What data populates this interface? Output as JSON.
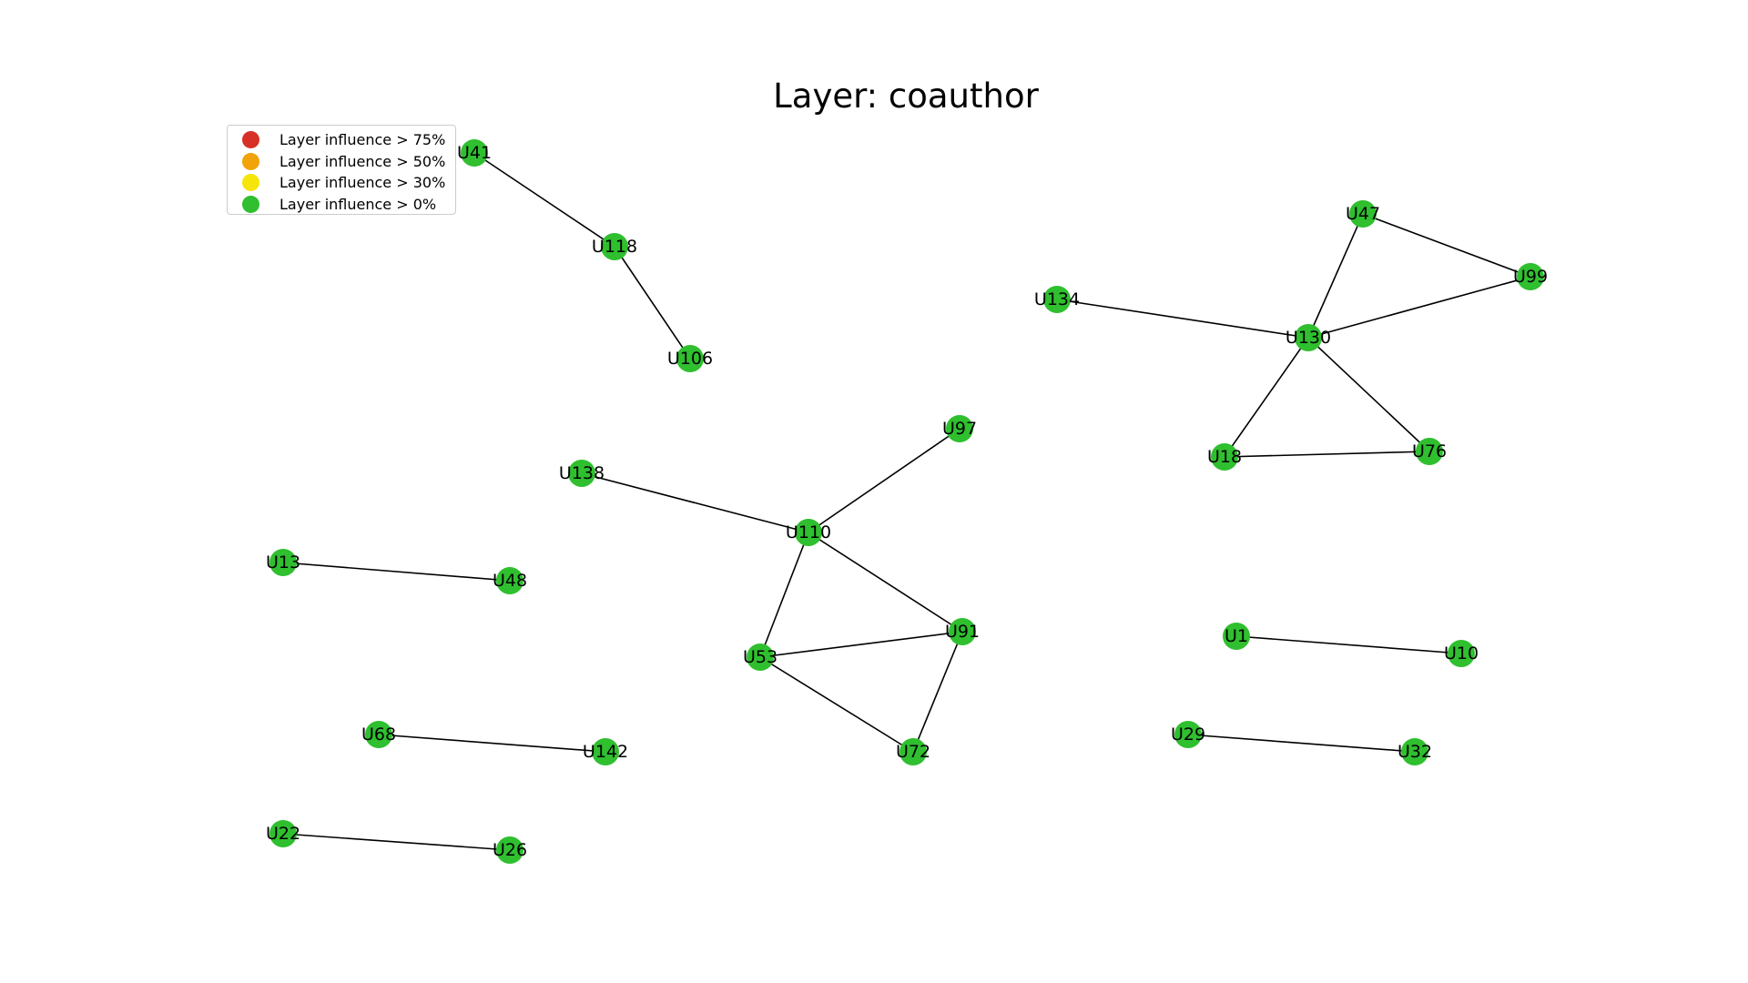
{
  "title": "Layer: coauthor",
  "legend": [
    {
      "label": "Layer influence > 75%",
      "color": "#d73027"
    },
    {
      "label": "Layer influence > 50%",
      "color": "#f0a30a"
    },
    {
      "label": "Layer influence > 30%",
      "color": "#f5e50a"
    },
    {
      "label": "Layer influence > 0%",
      "color": "#2fbf2f"
    }
  ],
  "node_color": "#2fbf2f",
  "nodes": [
    "U41",
    "U118",
    "U106",
    "U47",
    "U99",
    "U134",
    "U130",
    "U18",
    "U76",
    "U97",
    "U138",
    "U110",
    "U13",
    "U48",
    "U91",
    "U53",
    "U72",
    "U1",
    "U10",
    "U68",
    "U142",
    "U29",
    "U32",
    "U22",
    "U26"
  ],
  "edges": [
    [
      "U41",
      "U118"
    ],
    [
      "U118",
      "U106"
    ],
    [
      "U134",
      "U130"
    ],
    [
      "U130",
      "U47"
    ],
    [
      "U130",
      "U99"
    ],
    [
      "U47",
      "U99"
    ],
    [
      "U130",
      "U18"
    ],
    [
      "U130",
      "U76"
    ],
    [
      "U18",
      "U76"
    ],
    [
      "U138",
      "U110"
    ],
    [
      "U110",
      "U97"
    ],
    [
      "U110",
      "U91"
    ],
    [
      "U110",
      "U53"
    ],
    [
      "U53",
      "U91"
    ],
    [
      "U53",
      "U72"
    ],
    [
      "U91",
      "U72"
    ],
    [
      "U13",
      "U48"
    ],
    [
      "U1",
      "U10"
    ],
    [
      "U68",
      "U142"
    ],
    [
      "U29",
      "U32"
    ],
    [
      "U22",
      "U26"
    ]
  ]
}
